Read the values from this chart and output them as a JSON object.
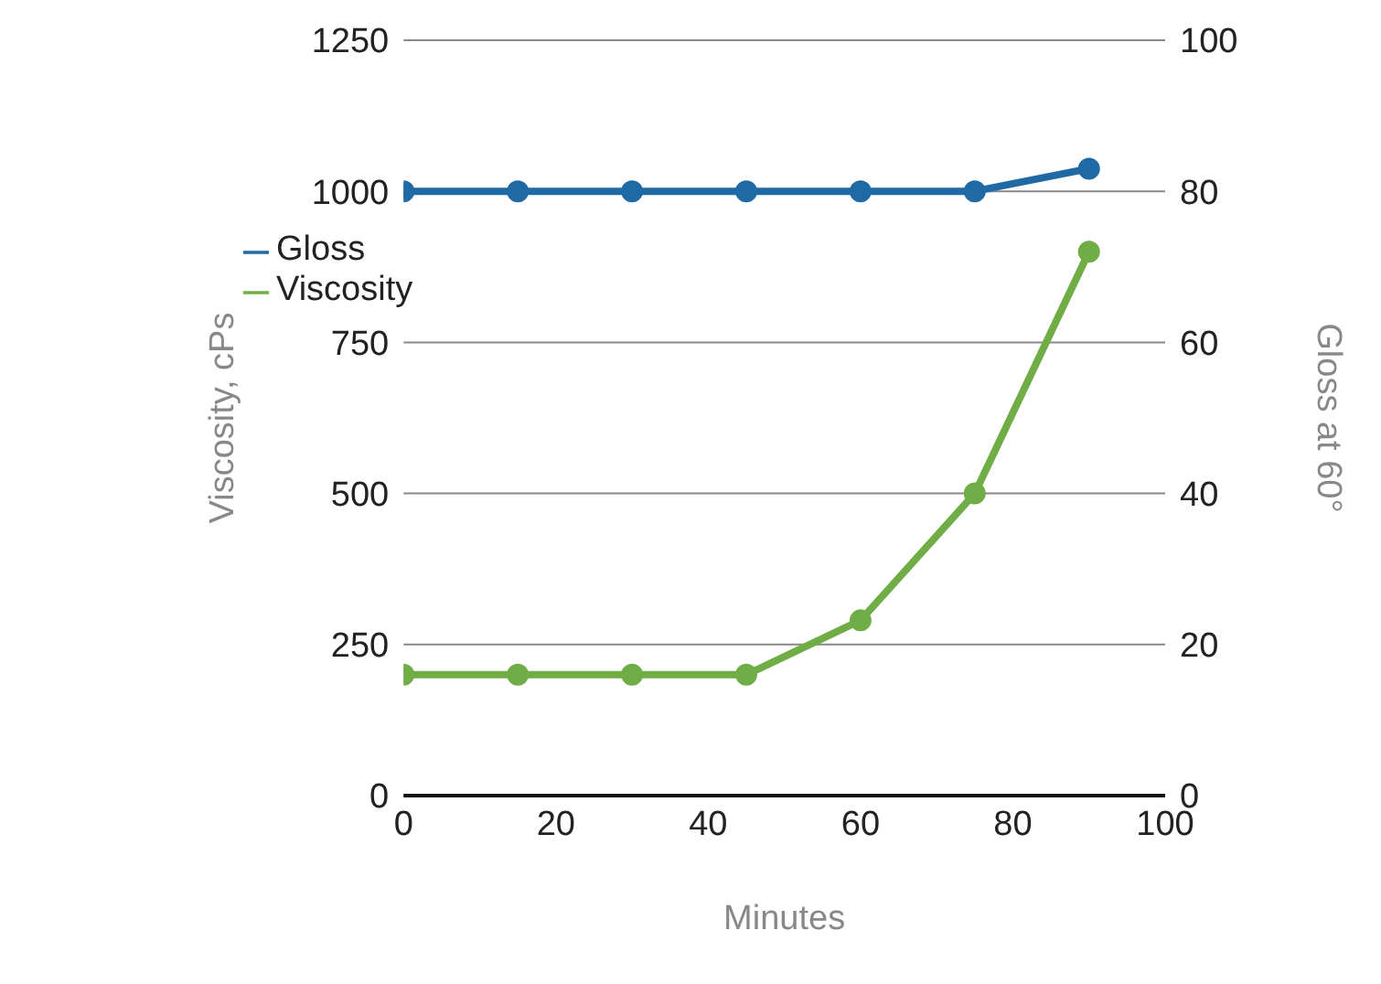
{
  "chart_data": {
    "type": "line",
    "xlabel": "Minutes",
    "ylabel": "Viscosity, cPs",
    "y2label": "Gloss at 60°",
    "x": [
      0,
      15,
      30,
      45,
      60,
      75,
      90
    ],
    "series": [
      {
        "name": "Gloss",
        "color": "#1f6aa5",
        "axis": "y2",
        "values": [
          80,
          80,
          80,
          80,
          80,
          80,
          83
        ]
      },
      {
        "name": "Viscosity",
        "color": "#70ad47",
        "values": [
          200,
          200,
          200,
          200,
          290,
          500,
          900
        ]
      }
    ],
    "xlim": [
      0,
      100
    ],
    "xticks": [
      0,
      20,
      40,
      60,
      80,
      100
    ],
    "ylim": [
      0,
      1250
    ],
    "yticks": [
      0,
      250,
      500,
      750,
      1000,
      1250
    ],
    "y2lim": [
      0,
      100
    ],
    "y2ticks": [
      0,
      20,
      40,
      60,
      80,
      100
    ],
    "grid": "y",
    "legend": "top left",
    "marker": "circle",
    "line_style": "solid"
  }
}
